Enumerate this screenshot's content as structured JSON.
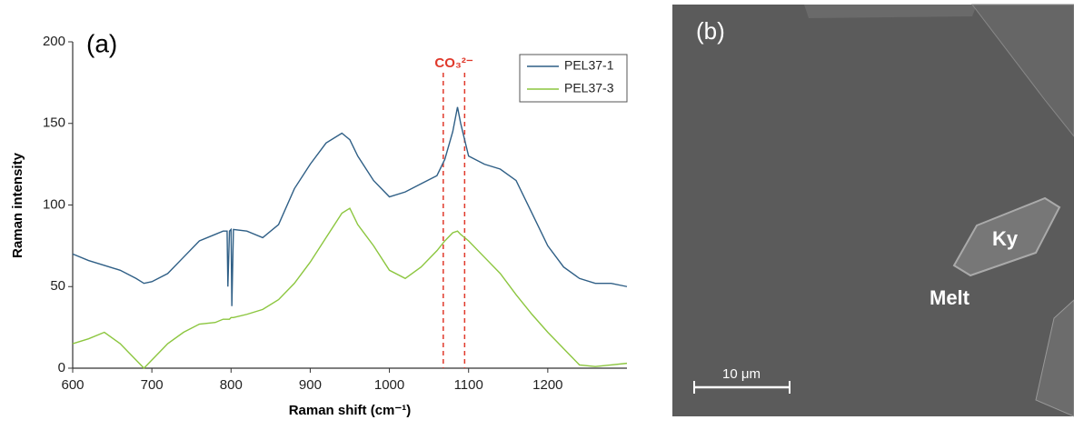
{
  "chart_data": {
    "type": "line",
    "panel_label": "(a)",
    "x_label": "Raman shift (cm⁻¹)",
    "y_label": "Raman intensity",
    "xlim": [
      600,
      1300
    ],
    "xticks": [
      600,
      700,
      800,
      900,
      1000,
      1100,
      1200
    ],
    "ylim": [
      0,
      200
    ],
    "yticks": [
      0,
      50,
      100,
      150,
      200
    ],
    "legend": "upper right",
    "x": [
      600,
      620,
      640,
      660,
      680,
      690,
      700,
      720,
      740,
      760,
      780,
      790,
      795,
      796,
      798,
      800,
      801,
      803,
      820,
      840,
      860,
      880,
      900,
      920,
      940,
      950,
      960,
      980,
      1000,
      1020,
      1040,
      1060,
      1070,
      1080,
      1086,
      1090,
      1100,
      1120,
      1140,
      1160,
      1180,
      1200,
      1220,
      1240,
      1260,
      1280,
      1300
    ],
    "series": [
      {
        "name": "PEL37-1",
        "color": "#2f5f86",
        "values": [
          70,
          66,
          63,
          60,
          55,
          52,
          53,
          58,
          68,
          78,
          82,
          84,
          84,
          50,
          84,
          85,
          38,
          85,
          84,
          80,
          88,
          110,
          125,
          138,
          144,
          140,
          130,
          115,
          105,
          108,
          113,
          118,
          128,
          145,
          160,
          150,
          130,
          125,
          122,
          115,
          95,
          75,
          62,
          55,
          52,
          52,
          50
        ]
      },
      {
        "name": "PEL37-3",
        "color": "#8cc63f",
        "values": [
          15,
          18,
          22,
          15,
          5,
          0,
          5,
          15,
          22,
          27,
          28,
          30,
          30,
          30,
          30,
          31,
          31,
          31,
          33,
          36,
          42,
          52,
          65,
          80,
          95,
          98,
          88,
          75,
          60,
          55,
          62,
          72,
          78,
          83,
          84,
          82,
          78,
          68,
          58,
          45,
          33,
          22,
          12,
          2,
          1,
          2,
          3
        ]
      }
    ],
    "reference_lines": [
      1068,
      1095
    ],
    "reference_label": "CO₃²⁻",
    "reference_color": "#e0392b"
  },
  "image": {
    "panel_label": "(b)",
    "labels": [
      "Ky",
      "Melt"
    ],
    "scale_bar": "10 μm"
  }
}
